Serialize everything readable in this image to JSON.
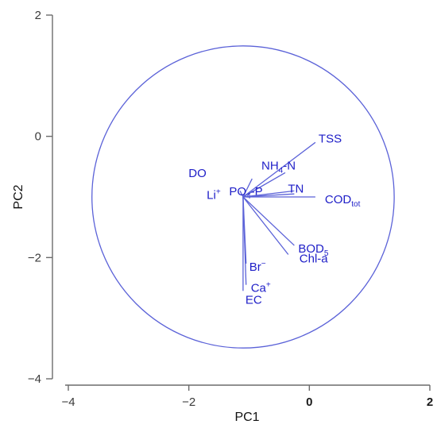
{
  "chart_data": {
    "type": "scatter",
    "title": "",
    "xlabel": "PC1",
    "ylabel": "PC2",
    "xlim": [
      -4.1,
      2.1
    ],
    "ylim": [
      -4.0,
      2.0
    ],
    "x_ticks": [
      {
        "value": -4,
        "label": "−4"
      },
      {
        "value": -2,
        "label": "−2"
      },
      {
        "value": 0,
        "label": "0"
      },
      {
        "value": 2,
        "label": "2"
      }
    ],
    "y_ticks": [
      {
        "value": 2,
        "label": "2"
      },
      {
        "value": 0,
        "label": "0"
      },
      {
        "value": -2,
        "label": "−2"
      },
      {
        "value": -4,
        "label": "−4"
      }
    ],
    "circle": {
      "center": [
        -1.1,
        -1.0
      ],
      "radius": 2.5
    },
    "origin": [
      -1.1,
      -1.0
    ],
    "loadings": [
      {
        "name": "TSS",
        "base": "TSS",
        "x": 0.1,
        "y": -0.1
      },
      {
        "name": "NH4-N",
        "base": "NH",
        "sub": "4",
        "tail": "-N",
        "x": -0.4,
        "y": -0.6
      },
      {
        "name": "DO",
        "base": "DO",
        "x": -0.95,
        "y": -0.7
      },
      {
        "name": "Li+",
        "base": "Li",
        "sup": "+",
        "x": -1.15,
        "y": -0.9
      },
      {
        "name": "PO4-P",
        "base": "PO",
        "sub": "4",
        "tail": "-P",
        "x": -0.25,
        "y": -0.95
      },
      {
        "name": "TN",
        "base": "TN",
        "x": -0.25,
        "y": -0.9
      },
      {
        "name": "CODtot",
        "base": "COD",
        "sub": "tot",
        "x": 0.1,
        "y": -1.0
      },
      {
        "name": "BOD5",
        "base": "BOD",
        "sub": "5",
        "x": -0.25,
        "y": -1.8
      },
      {
        "name": "Chl-a",
        "base": "Chl-a",
        "x": -0.35,
        "y": -1.95
      },
      {
        "name": "Br-",
        "base": "Br",
        "sup": "−",
        "x": -1.05,
        "y": -2.1
      },
      {
        "name": "Ca+",
        "base": "Ca",
        "sup": "+",
        "x": -1.05,
        "y": -2.45
      },
      {
        "name": "EC",
        "base": "EC",
        "x": -1.1,
        "y": -2.55
      }
    ]
  }
}
